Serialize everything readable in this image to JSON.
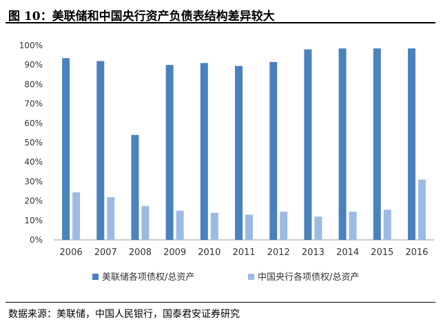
{
  "header": {
    "title": "图 10：美联储和中国央行资产负债表结构差异较大"
  },
  "footer": {
    "source": "数据来源：美联储，中国人民银行，国泰君安证券研究"
  },
  "chart_data": {
    "type": "bar",
    "categories": [
      "2006",
      "2007",
      "2008",
      "2009",
      "2010",
      "2011",
      "2012",
      "2013",
      "2014",
      "2015",
      "2016"
    ],
    "series": [
      {
        "name": "美联储各项债权/总资产",
        "color": "#4a82bd",
        "values": [
          93.5,
          92,
          54,
          90,
          91,
          89.5,
          91.5,
          98,
          98.5,
          98.5,
          98.5
        ]
      },
      {
        "name": "中国央行各项债权/总资产",
        "color": "#9dbbe2",
        "values": [
          24.5,
          22,
          17.5,
          15,
          14,
          13,
          14.5,
          12,
          14.5,
          15.5,
          31
        ]
      }
    ],
    "yticks": [
      "0%",
      "10%",
      "20%",
      "30%",
      "40%",
      "50%",
      "60%",
      "70%",
      "80%",
      "90%",
      "100%"
    ],
    "ylim": [
      0,
      100
    ],
    "grid": false,
    "legend": "bottom"
  }
}
